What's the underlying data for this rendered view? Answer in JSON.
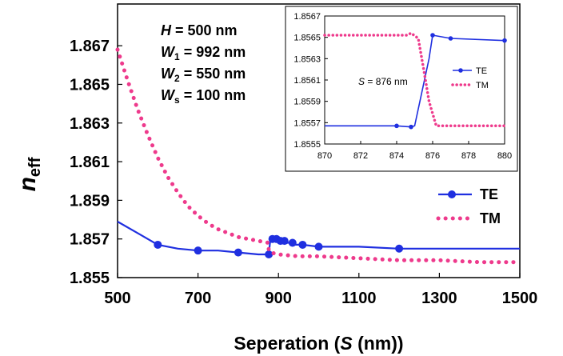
{
  "chart_data": [
    {
      "type": "line",
      "xlabel": "Seperation (S (nm))",
      "ylabel": "n_eff",
      "ylabel_main": "n",
      "ylabel_sub": "eff",
      "xlabel_prefix": "Seperation (",
      "xlabel_var": "S",
      "xlabel_suffix": " (nm))",
      "xlim": [
        500,
        1500
      ],
      "ylim": [
        1.855,
        1.868
      ],
      "x_ticks": [
        500,
        700,
        900,
        1100,
        1300,
        1500
      ],
      "x_tick_labels": [
        "500",
        "700",
        "900",
        "1100",
        "1300",
        "1500"
      ],
      "y_ticks": [
        1.855,
        1.857,
        1.859,
        1.861,
        1.863,
        1.865,
        1.867
      ],
      "y_tick_labels": [
        "1.855",
        "1.857",
        "1.859",
        "1.861",
        "1.863",
        "1.865",
        "1.867"
      ],
      "grid": false,
      "legend_position": "right",
      "annotations": [
        {
          "var": "H",
          "sub": "",
          "text": " = 500 nm"
        },
        {
          "var": "W",
          "sub": "1",
          "text": " = 992 nm"
        },
        {
          "var": "W",
          "sub": "2",
          "text": " = 550 nm"
        },
        {
          "var": "W",
          "sub": "s",
          "text": " = 100 nm"
        }
      ],
      "series": [
        {
          "name": "TE",
          "color": "#1f2fe0",
          "style": "solid-markers",
          "x": [
            500,
            550,
            600,
            650,
            700,
            750,
            800,
            850,
            876,
            880,
            890,
            900,
            910,
            920,
            930,
            940,
            960,
            1000,
            1100,
            1200,
            1300,
            1400,
            1500
          ],
          "y": [
            1.8579,
            1.8573,
            1.8567,
            1.8565,
            1.8564,
            1.8564,
            1.8563,
            1.8562,
            1.8562,
            1.857,
            1.857,
            1.8569,
            1.8569,
            1.8568,
            1.8568,
            1.8567,
            1.8567,
            1.8566,
            1.8566,
            1.8565,
            1.8565,
            1.8565,
            1.8565
          ],
          "markers": [
            [
              600,
              1.8567
            ],
            [
              700,
              1.8564
            ],
            [
              800,
              1.8563
            ],
            [
              876,
              1.8562
            ],
            [
              885,
              1.857
            ],
            [
              895,
              1.857
            ],
            [
              905,
              1.8569
            ],
            [
              915,
              1.8569
            ],
            [
              935,
              1.8568
            ],
            [
              960,
              1.8567
            ],
            [
              1000,
              1.8566
            ],
            [
              1200,
              1.8565
            ]
          ]
        },
        {
          "name": "TM",
          "color": "#ee3a8c",
          "style": "dotted",
          "x": [
            500,
            525,
            550,
            575,
            600,
            625,
            650,
            675,
            700,
            725,
            750,
            775,
            800,
            825,
            850,
            875,
            876,
            880,
            900,
            950,
            1000,
            1100,
            1200,
            1300,
            1400,
            1500
          ],
          "y": [
            1.8668,
            1.8652,
            1.8637,
            1.8624,
            1.8612,
            1.8602,
            1.8594,
            1.8587,
            1.8582,
            1.8578,
            1.8575,
            1.8573,
            1.8571,
            1.857,
            1.8569,
            1.8568,
            1.8564,
            1.8563,
            1.8562,
            1.8561,
            1.8561,
            1.856,
            1.8559,
            1.8559,
            1.8558,
            1.8558
          ]
        }
      ]
    },
    {
      "type": "line",
      "xlabel": "",
      "ylabel": "",
      "xlim": [
        870,
        880
      ],
      "ylim": [
        1.8555,
        1.8567
      ],
      "x_ticks": [
        870,
        872,
        874,
        876,
        878,
        880
      ],
      "x_tick_labels": [
        "870",
        "872",
        "874",
        "876",
        "878",
        "880"
      ],
      "y_ticks": [
        1.8555,
        1.8557,
        1.8559,
        1.8561,
        1.8563,
        1.8565,
        1.8567
      ],
      "y_tick_labels": [
        "1.8555",
        "1.8557",
        "1.8559",
        "1.8561",
        "1.8563",
        "1.8565",
        "1.8567"
      ],
      "grid": false,
      "legend_position": "right",
      "annotation": {
        "var": "S",
        "text": " = 876 nm"
      },
      "series": [
        {
          "name": "TE",
          "color": "#1f2fe0",
          "style": "solid-markers",
          "x": [
            870,
            874,
            874.8,
            875,
            875.8,
            876,
            877,
            880
          ],
          "y": [
            1.85567,
            1.85567,
            1.85566,
            1.85567,
            1.8563,
            1.85652,
            1.85649,
            1.85647
          ],
          "markers": [
            [
              874,
              1.85567
            ],
            [
              874.8,
              1.85566
            ],
            [
              876,
              1.85652
            ],
            [
              877,
              1.85649
            ],
            [
              880,
              1.85647
            ]
          ]
        },
        {
          "name": "TM",
          "color": "#ee3a8c",
          "style": "dotted",
          "x": [
            870,
            874.6,
            874.8,
            875.2,
            875.5,
            875.8,
            876.2,
            877,
            880
          ],
          "y": [
            1.85652,
            1.85652,
            1.85654,
            1.85649,
            1.8562,
            1.8559,
            1.85567,
            1.85567,
            1.85567
          ]
        }
      ]
    }
  ]
}
